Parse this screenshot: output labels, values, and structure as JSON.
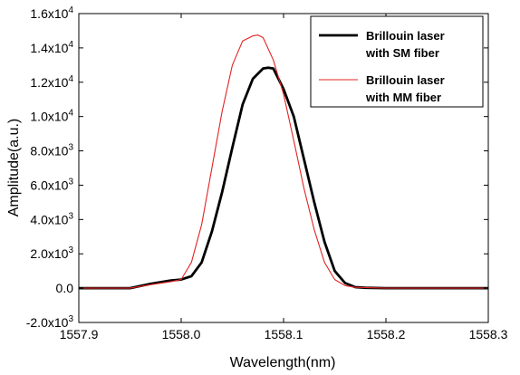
{
  "chart_data": {
    "type": "line",
    "title": "",
    "xlabel": "Wavelength(nm)",
    "ylabel": "Amplitude(a.u.)",
    "xlim": [
      1557.9,
      1558.3
    ],
    "ylim": [
      -2000,
      16000
    ],
    "x_ticks": [
      1557.9,
      1558.0,
      1558.1,
      1558.2,
      1558.3
    ],
    "x_tick_labels": [
      "1557.9",
      "1558.0",
      "1558.1",
      "1558.2",
      "1558.3"
    ],
    "y_ticks": [
      -2000,
      0,
      2000,
      4000,
      6000,
      8000,
      10000,
      12000,
      14000,
      16000
    ],
    "y_tick_labels": [
      {
        "base": "-2.0x10",
        "exp": "3"
      },
      {
        "base": "0.0",
        "exp": ""
      },
      {
        "base": "2.0x10",
        "exp": "3"
      },
      {
        "base": "4.0x10",
        "exp": "3"
      },
      {
        "base": "6.0x10",
        "exp": "3"
      },
      {
        "base": "8.0x10",
        "exp": "3"
      },
      {
        "base": "1.0x10",
        "exp": "4"
      },
      {
        "base": "1.2x10",
        "exp": "4"
      },
      {
        "base": "1.4x10",
        "exp": "4"
      },
      {
        "base": "1.6x10",
        "exp": "4"
      }
    ],
    "grid": false,
    "legend_position": "top-right",
    "series": [
      {
        "name": "Brillouin laser with SM fiber",
        "legend_lines": [
          "Brillouin laser",
          "with SM fiber"
        ],
        "color": "#000000",
        "style": "bold",
        "x": [
          1557.9,
          1557.95,
          1557.97,
          1557.99,
          1558.0,
          1558.01,
          1558.02,
          1558.03,
          1558.04,
          1558.05,
          1558.06,
          1558.07,
          1558.08,
          1558.085,
          1558.09,
          1558.1,
          1558.11,
          1558.12,
          1558.13,
          1558.14,
          1558.15,
          1558.16,
          1558.17,
          1558.18,
          1558.2,
          1558.25,
          1558.3
        ],
        "y": [
          0,
          0,
          250,
          450,
          500,
          700,
          1500,
          3300,
          5600,
          8200,
          10700,
          12200,
          12800,
          12850,
          12800,
          11600,
          10000,
          7500,
          5000,
          2700,
          1000,
          300,
          60,
          20,
          0,
          0,
          0
        ]
      },
      {
        "name": "Brillouin laser with MM fiber",
        "legend_lines": [
          "Brillouin laser",
          "with MM fiber"
        ],
        "color": "#e32323",
        "style": "thin",
        "x": [
          1557.9,
          1557.95,
          1557.97,
          1557.99,
          1558.0,
          1558.01,
          1558.02,
          1558.03,
          1558.04,
          1558.05,
          1558.06,
          1558.07,
          1558.075,
          1558.08,
          1558.09,
          1558.1,
          1558.11,
          1558.12,
          1558.13,
          1558.14,
          1558.15,
          1558.16,
          1558.17,
          1558.2,
          1558.25,
          1558.3
        ],
        "y": [
          0,
          0,
          200,
          380,
          500,
          1500,
          3700,
          7000,
          10300,
          13000,
          14400,
          14700,
          14750,
          14600,
          13300,
          11300,
          8600,
          5800,
          3400,
          1500,
          500,
          150,
          50,
          0,
          0,
          0
        ]
      }
    ]
  }
}
